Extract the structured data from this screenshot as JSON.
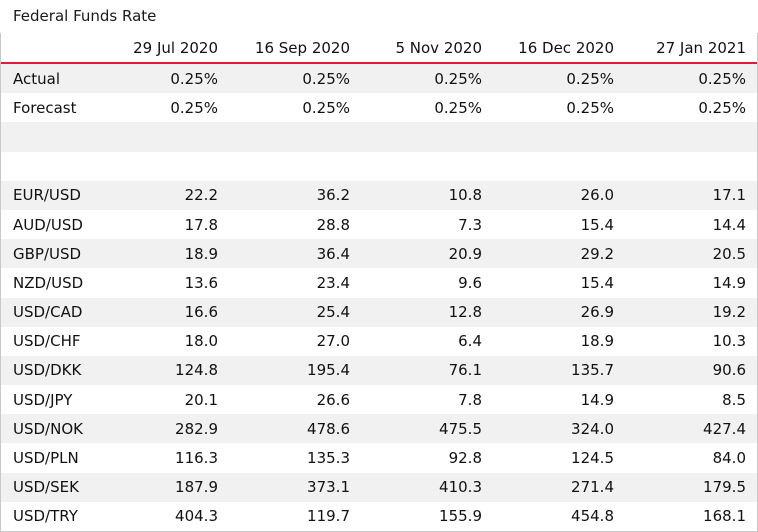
{
  "title": "Federal Funds Rate",
  "columns": [
    "",
    "29 Jul 2020",
    "16 Sep 2020",
    "5 Nov 2020",
    "16 Dec 2020",
    "27 Jan 2021"
  ],
  "rows": [
    {
      "label": "Actual",
      "values": [
        "0.25%",
        "0.25%",
        "0.25%",
        "0.25%",
        "0.25%"
      ]
    },
    {
      "label": "Forecast",
      "values": [
        "0.25%",
        "0.25%",
        "0.25%",
        "0.25%",
        "0.25%"
      ]
    },
    {
      "label": "",
      "values": [
        "",
        "",
        "",
        "",
        ""
      ]
    },
    {
      "label": "",
      "values": [
        "",
        "",
        "",
        "",
        ""
      ]
    },
    {
      "label": "EUR/USD",
      "values": [
        "22.2",
        "36.2",
        "10.8",
        "26.0",
        "17.1"
      ]
    },
    {
      "label": "AUD/USD",
      "values": [
        "17.8",
        "28.8",
        "7.3",
        "15.4",
        "14.4"
      ]
    },
    {
      "label": "GBP/USD",
      "values": [
        "18.9",
        "36.4",
        "20.9",
        "29.2",
        "20.5"
      ]
    },
    {
      "label": "NZD/USD",
      "values": [
        "13.6",
        "23.4",
        "9.6",
        "15.4",
        "14.9"
      ]
    },
    {
      "label": "USD/CAD",
      "values": [
        "16.6",
        "25.4",
        "12.8",
        "26.9",
        "19.2"
      ]
    },
    {
      "label": "USD/CHF",
      "values": [
        "18.0",
        "27.0",
        "6.4",
        "18.9",
        "10.3"
      ]
    },
    {
      "label": "USD/DKK",
      "values": [
        "124.8",
        "195.4",
        "76.1",
        "135.7",
        "90.6"
      ]
    },
    {
      "label": "USD/JPY",
      "values": [
        "20.1",
        "26.6",
        "7.8",
        "14.9",
        "8.5"
      ]
    },
    {
      "label": "USD/NOK",
      "values": [
        "282.9",
        "478.6",
        "475.5",
        "324.0",
        "427.4"
      ]
    },
    {
      "label": "USD/PLN",
      "values": [
        "116.3",
        "135.3",
        "92.8",
        "124.5",
        "84.0"
      ]
    },
    {
      "label": "USD/SEK",
      "values": [
        "187.9",
        "373.1",
        "410.3",
        "271.4",
        "179.5"
      ]
    },
    {
      "label": "USD/TRY",
      "values": [
        "404.3",
        "119.7",
        "155.9",
        "454.8",
        "168.1"
      ]
    }
  ],
  "colors": {
    "header_rule": "#e21b2d",
    "stripe": "#f1f1f1"
  }
}
